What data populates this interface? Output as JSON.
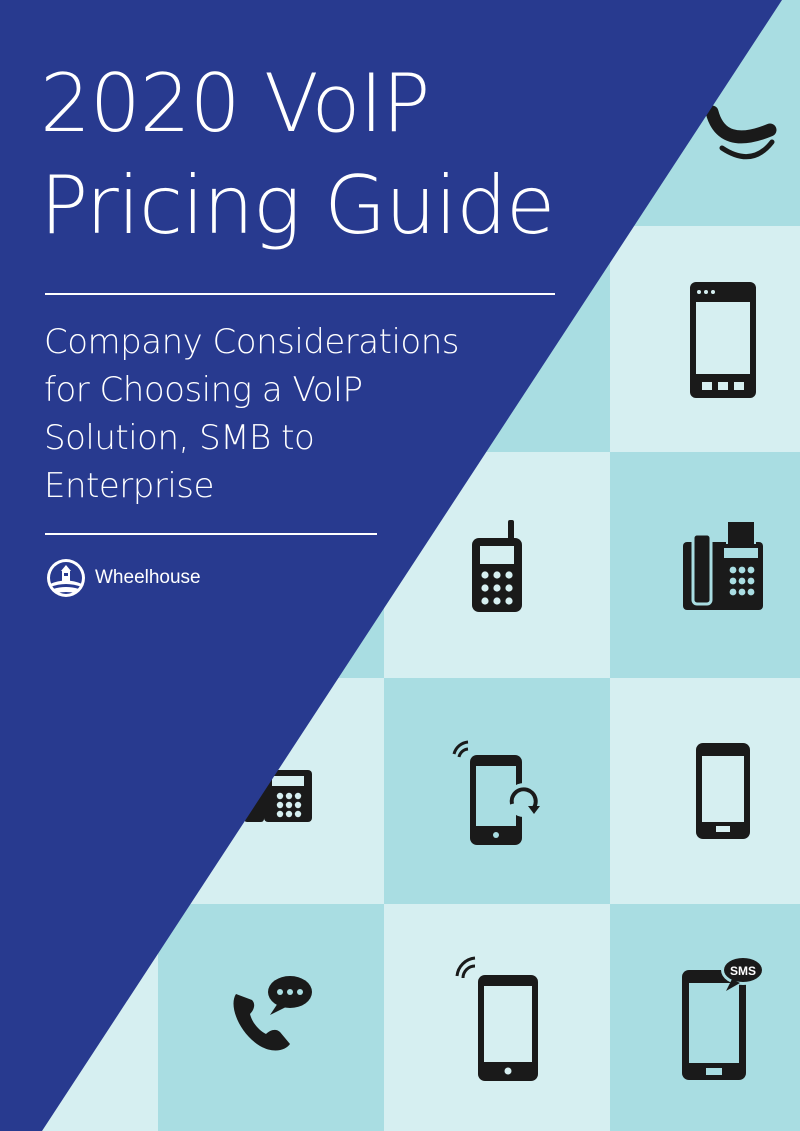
{
  "cover": {
    "title_line_1": "2020 VoIP",
    "title_line_2": "Pricing Guide",
    "subtitle_lines": [
      "Company Considerations",
      "for Choosing a VoIP",
      "Solution, SMB to",
      "Enterprise"
    ],
    "brand": "Wheelhouse",
    "sms_badge": "SMS"
  },
  "colors": {
    "navy": "#283a8f",
    "tile_dark": "#a9dde2",
    "tile_light": "#d6eff1",
    "icon": "#1a1a1a"
  },
  "icons": [
    "telephone-handset-icon",
    "tablet-icon",
    "mobile-phone-antenna-icon",
    "fax-machine-icon",
    "desk-phone-icon",
    "mobile-rotate-icon",
    "smartphone-icon",
    "phone-chat-icon",
    "smartphone-signal-icon",
    "smartphone-sms-icon"
  ]
}
